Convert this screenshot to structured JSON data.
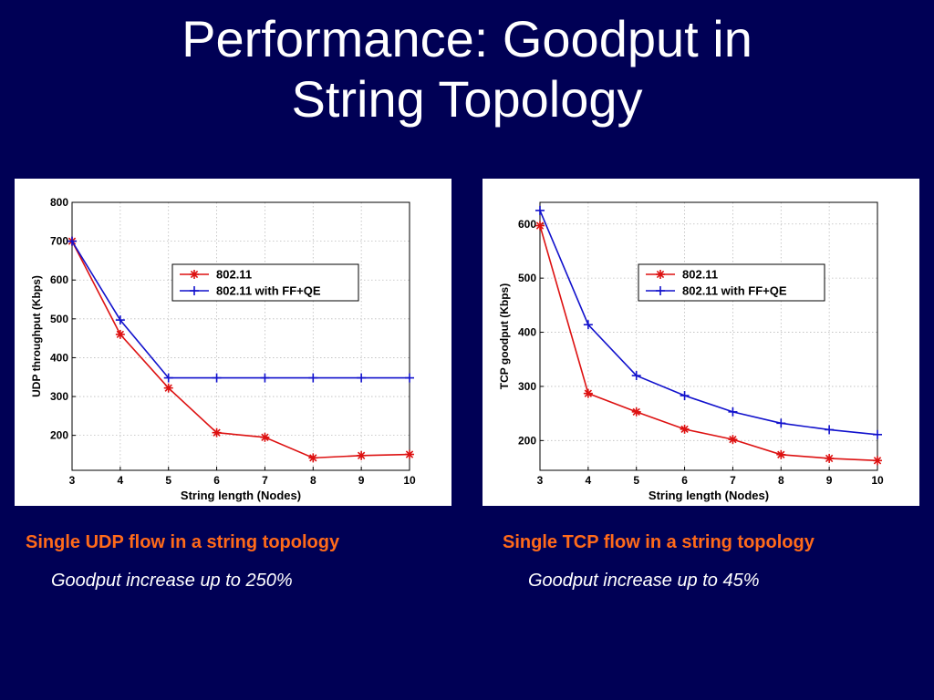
{
  "slide": {
    "title_line1": "Performance: Goodput in",
    "title_line2": "String Topology"
  },
  "captions": {
    "udp_heading": "Single UDP flow in a string topology",
    "udp_note": "Goodput increase up to 250%",
    "tcp_heading": "Single TCP flow in a string topology",
    "tcp_note": "Goodput increase up to 45%"
  },
  "colors": {
    "background": "#000055",
    "series_80211": "#dd1111",
    "series_ffqe": "#1111cc",
    "caption": "#ff6a1a"
  },
  "chart_data": [
    {
      "id": "udp",
      "type": "line",
      "xlabel": "String length (Nodes)",
      "ylabel": "UDP throughput (Kbps)",
      "xlim": [
        3,
        10
      ],
      "ylim": [
        110,
        800
      ],
      "x_ticks": [
        3,
        4,
        5,
        6,
        7,
        8,
        9,
        10
      ],
      "y_ticks": [
        200,
        300,
        400,
        500,
        600,
        700,
        800
      ],
      "grid": true,
      "legend_position": "upper-right",
      "series": [
        {
          "name": "802.11",
          "marker": "star",
          "color": "#dd1111",
          "x": [
            3,
            4,
            5,
            6,
            7,
            8,
            9,
            10
          ],
          "values": [
            700,
            460,
            322,
            207,
            195,
            142,
            148,
            151
          ]
        },
        {
          "name": "802.11 with FF+QE",
          "marker": "plus",
          "color": "#1111cc",
          "x": [
            3,
            4,
            5,
            6,
            7,
            8,
            9,
            10
          ],
          "values": [
            700,
            497,
            348,
            348,
            348,
            348,
            348,
            348
          ]
        }
      ]
    },
    {
      "id": "tcp",
      "type": "line",
      "xlabel": "String length (Nodes)",
      "ylabel": "TCP goodput (Kbps)",
      "xlim": [
        3,
        10
      ],
      "ylim": [
        145,
        640
      ],
      "x_ticks": [
        3,
        4,
        5,
        6,
        7,
        8,
        9,
        10
      ],
      "y_ticks": [
        200,
        300,
        400,
        500,
        600
      ],
      "grid": true,
      "legend_position": "upper-right",
      "series": [
        {
          "name": "802.11",
          "marker": "star",
          "color": "#dd1111",
          "x": [
            3,
            4,
            5,
            6,
            7,
            8,
            9,
            10
          ],
          "values": [
            597,
            287,
            253,
            221,
            202,
            174,
            167,
            163
          ]
        },
        {
          "name": "802.11 with FF+QE",
          "marker": "plus",
          "color": "#1111cc",
          "x": [
            3,
            4,
            5,
            6,
            7,
            8,
            9,
            10
          ],
          "values": [
            625,
            414,
            320,
            283,
            253,
            232,
            220,
            211
          ]
        }
      ]
    }
  ]
}
